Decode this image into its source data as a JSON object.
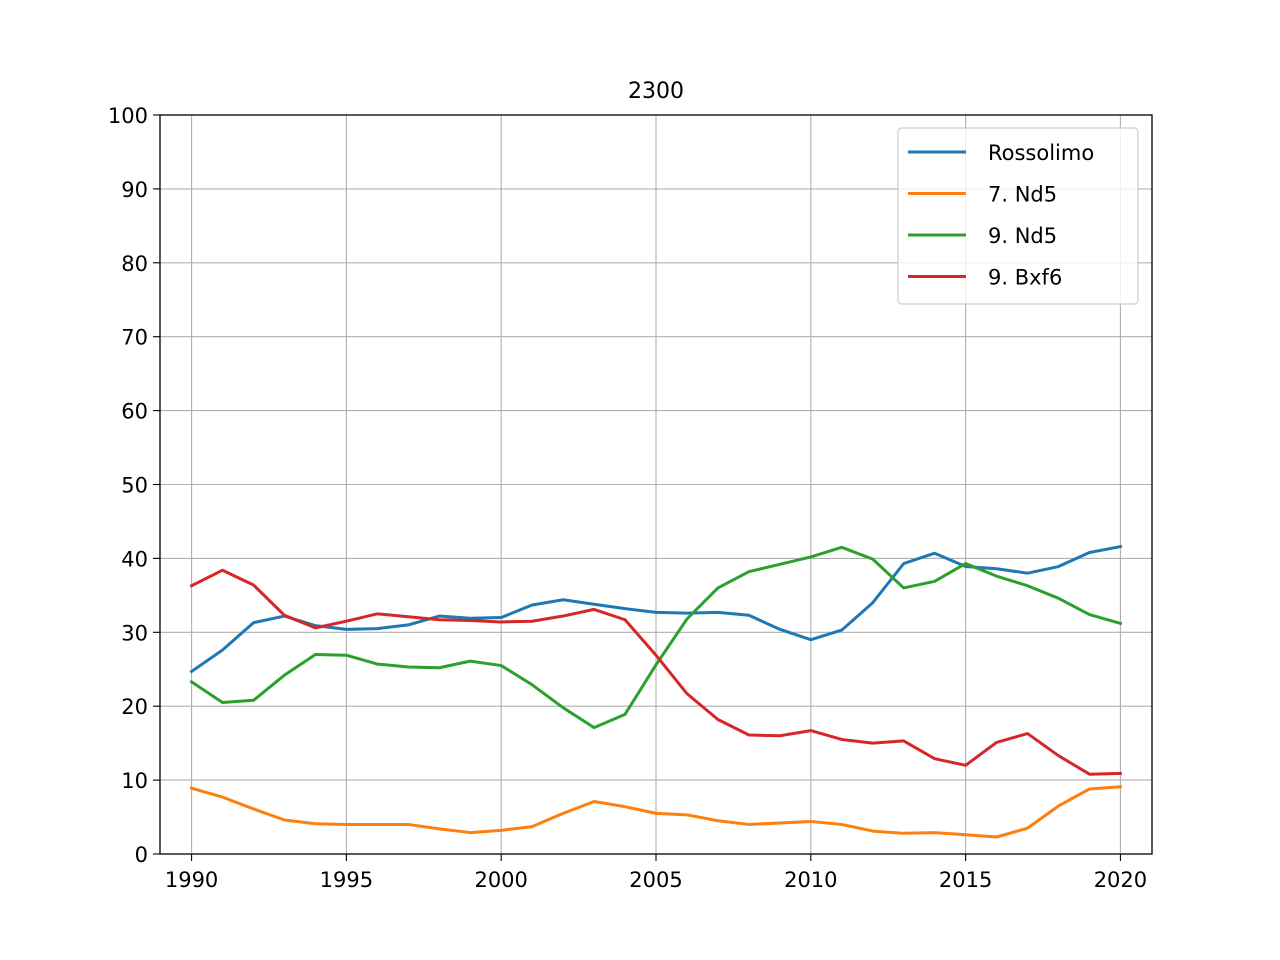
{
  "chart_data": {
    "type": "line",
    "title": "2300",
    "xlabel": "",
    "ylabel": "",
    "xlim": [
      1990,
      2020
    ],
    "ylim": [
      0,
      100
    ],
    "xticks": [
      1990,
      1995,
      2000,
      2005,
      2010,
      2015,
      2020
    ],
    "yticks": [
      0,
      10,
      20,
      30,
      40,
      50,
      60,
      70,
      80,
      90,
      100
    ],
    "grid": true,
    "legend_position": "top-right",
    "x": [
      1990,
      1991,
      1992,
      1993,
      1994,
      1995,
      1996,
      1997,
      1998,
      1999,
      2000,
      2001,
      2002,
      2003,
      2004,
      2005,
      2006,
      2007,
      2008,
      2009,
      2010,
      2011,
      2012,
      2013,
      2014,
      2015,
      2016,
      2017,
      2018,
      2019,
      2020
    ],
    "series": [
      {
        "name": "Rossolimo",
        "color": "#1f77b4",
        "values": [
          24.7,
          27.6,
          31.3,
          32.2,
          30.9,
          30.4,
          30.5,
          31.0,
          32.2,
          31.9,
          32.0,
          33.7,
          34.4,
          33.8,
          33.2,
          32.7,
          32.6,
          32.7,
          32.3,
          30.4,
          29.0,
          30.3,
          34.0,
          39.3,
          40.7,
          38.9,
          38.6,
          38.0,
          38.9,
          40.8,
          41.6
        ]
      },
      {
        "name": "7. Nd5",
        "color": "#ff7f0e",
        "values": [
          8.9,
          7.7,
          6.1,
          4.6,
          4.1,
          4.0,
          4.0,
          4.0,
          3.4,
          2.9,
          3.2,
          3.7,
          5.5,
          7.1,
          6.4,
          5.5,
          5.3,
          4.5,
          4.0,
          4.2,
          4.4,
          4.0,
          3.1,
          2.8,
          2.9,
          2.6,
          2.3,
          3.5,
          6.5,
          8.8,
          9.1
        ]
      },
      {
        "name": "9. Nd5",
        "color": "#2ca02c",
        "values": [
          23.3,
          20.5,
          20.8,
          24.2,
          27.0,
          26.9,
          25.7,
          25.3,
          25.2,
          26.1,
          25.5,
          22.9,
          19.8,
          17.1,
          18.9,
          25.6,
          31.8,
          36.0,
          38.2,
          39.2,
          40.2,
          41.5,
          39.9,
          36.0,
          36.9,
          39.3,
          37.6,
          36.3,
          34.6,
          32.4,
          31.2
        ]
      },
      {
        "name": "9. Bxf6",
        "color": "#d62728",
        "values": [
          36.3,
          38.4,
          36.4,
          32.3,
          30.6,
          31.5,
          32.5,
          32.1,
          31.7,
          31.6,
          31.4,
          31.5,
          32.2,
          33.1,
          31.7,
          26.9,
          21.7,
          18.2,
          16.1,
          16.0,
          16.7,
          15.5,
          15.0,
          15.3,
          12.9,
          12.0,
          15.1,
          16.3,
          13.3,
          10.8,
          10.9
        ]
      }
    ]
  }
}
